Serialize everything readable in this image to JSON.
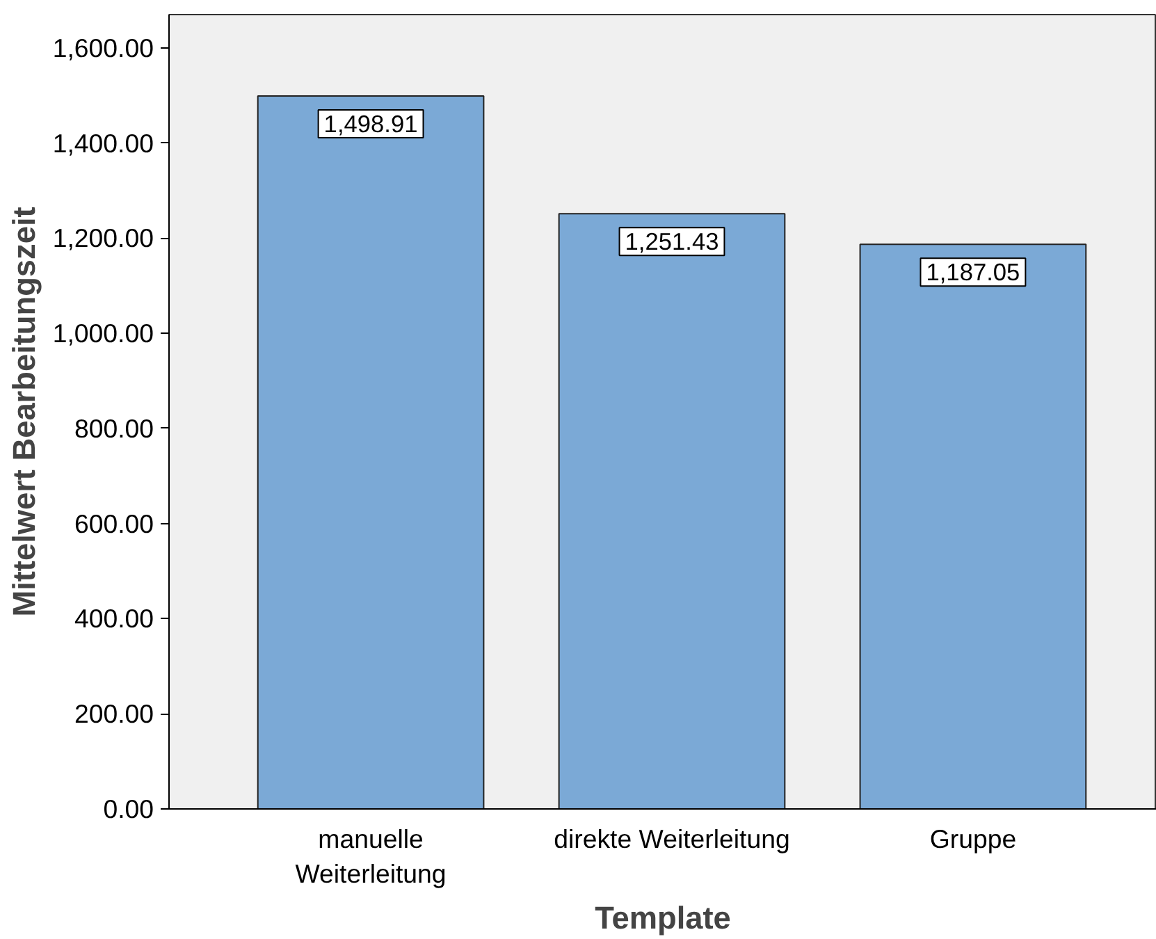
{
  "chart_data": {
    "type": "bar",
    "xlabel": "Template",
    "ylabel": "Mittelwert Bearbeitungszeit",
    "categories": [
      "manuelle\nWeiterleitung",
      "direkte Weiterleitung",
      "Gruppe"
    ],
    "values": [
      1498.91,
      1251.43,
      1187.05
    ],
    "value_labels": [
      "1,498.91",
      "1,251.43",
      "1,187.05"
    ],
    "color": "#7ba9d6",
    "ylim": [
      0,
      1670
    ],
    "yticks": [
      {
        "value": 0,
        "label": "0.00"
      },
      {
        "value": 200,
        "label": "200.00"
      },
      {
        "value": 400,
        "label": "400.00"
      },
      {
        "value": 600,
        "label": "600.00"
      },
      {
        "value": 800,
        "label": "800.00"
      },
      {
        "value": 1000,
        "label": "1,000.00"
      },
      {
        "value": 1200,
        "label": "1,200.00"
      },
      {
        "value": 1400,
        "label": "1,400.00"
      },
      {
        "value": 1600,
        "label": "1,600.00"
      }
    ],
    "grid": false
  }
}
